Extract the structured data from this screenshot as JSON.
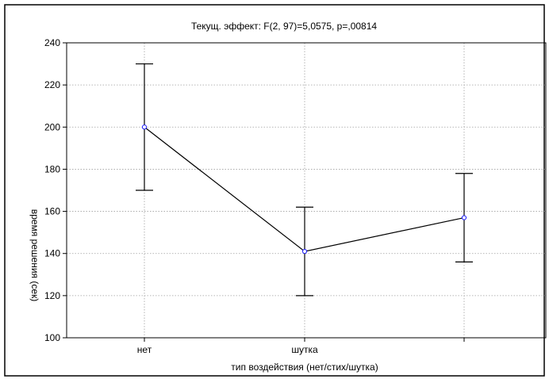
{
  "chart_data": {
    "type": "line",
    "title": "Текущ.  эффект: F(2, 97)=5,0575, p=,00814",
    "xlabel": "тип воздействия (нет/стих/шутка)",
    "ylabel": "время решения (сек)",
    "categories": [
      "нет",
      "шутка",
      ""
    ],
    "ylim": [
      100,
      240
    ],
    "yticks": [
      "100",
      "120",
      "140",
      "160",
      "180",
      "200",
      "220",
      "240"
    ],
    "grid": true,
    "series": [
      {
        "values": [
          200,
          141,
          157
        ],
        "error_low": [
          170,
          120,
          136
        ],
        "error_high": [
          230,
          162,
          178
        ]
      }
    ],
    "colors": {
      "line": "#000000",
      "marker": "#1c1cff",
      "grid": "#a0a0a0",
      "frame": "#000000"
    }
  }
}
